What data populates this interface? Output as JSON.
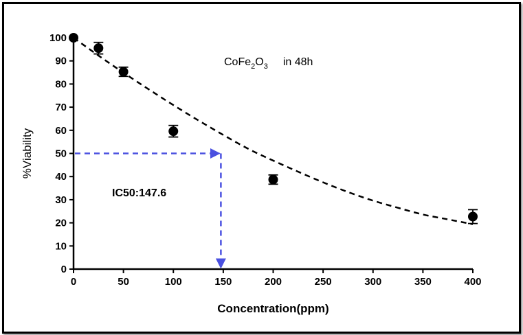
{
  "chart_data": {
    "type": "scatter",
    "title": "",
    "xlabel": "Concentration(ppm)",
    "ylabel": "%Viability",
    "xlim": [
      0,
      400
    ],
    "ylim": [
      0,
      100
    ],
    "x_ticks": [
      0,
      50,
      100,
      150,
      200,
      250,
      300,
      350,
      400
    ],
    "y_ticks": [
      0,
      10,
      20,
      30,
      40,
      50,
      60,
      70,
      80,
      90,
      100
    ],
    "grid": false,
    "legend": "none",
    "series": [
      {
        "x": [
          0,
          25,
          50,
          100,
          200,
          400
        ],
        "y": [
          100,
          95.5,
          85.3,
          59.6,
          38.7,
          22.7
        ],
        "error": [
          0,
          2.5,
          2,
          2.5,
          2,
          3
        ],
        "color": "#000000"
      }
    ],
    "fit_curve": {
      "style": "dashed",
      "color": "#000000",
      "x": [
        0,
        25,
        50,
        75,
        100,
        125,
        150,
        175,
        200,
        225,
        250,
        275,
        300,
        325,
        350,
        375,
        400
      ],
      "y": [
        100,
        92.3,
        84.9,
        77.8,
        70.9,
        64.3,
        58.0,
        52.0,
        46.9,
        42.1,
        37.5,
        33.3,
        29.6,
        26.5,
        23.6,
        21.5,
        19.4
      ]
    },
    "annotations": {
      "compound_main": "CoFe",
      "compound_sub1": "2",
      "compound_mid": "O",
      "compound_sub2": "3",
      "compound_suffix": "in 48h",
      "ic50_label": "IC50:147.6",
      "ic50_x": 147.6,
      "ic50_y": 50,
      "ic50_marker_color": "#4a50e0"
    }
  }
}
